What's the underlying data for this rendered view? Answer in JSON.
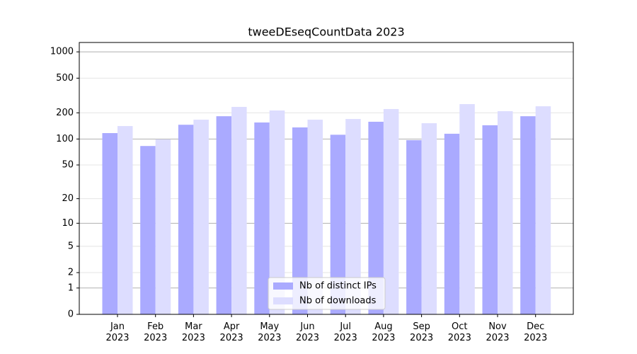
{
  "chart_data": {
    "type": "bar",
    "title": "tweeDEseqCountData 2023",
    "categories": [
      "Jan\n2023",
      "Feb\n2023",
      "Mar\n2023",
      "Apr\n2023",
      "May\n2023",
      "Jun\n2023",
      "Jul\n2023",
      "Aug\n2023",
      "Sep\n2023",
      "Oct\n2023",
      "Nov\n2023",
      "Dec\n2023"
    ],
    "series": [
      {
        "name": "Nb of distinct IPs",
        "color": "#aaaaff",
        "values": [
          117,
          83,
          146,
          183,
          155,
          136,
          112,
          158,
          97,
          115,
          144,
          183
        ]
      },
      {
        "name": "Nb of downloads",
        "color": "#ddddff",
        "values": [
          141,
          99,
          167,
          234,
          213,
          167,
          170,
          221,
          152,
          252,
          209,
          238
        ]
      }
    ],
    "yscale": "log1p",
    "ylim": [
      0,
      1280
    ],
    "yticks": [
      0,
      1,
      2,
      5,
      10,
      20,
      50,
      100,
      200,
      500,
      1000
    ],
    "grid": true,
    "legend": "lower center"
  }
}
